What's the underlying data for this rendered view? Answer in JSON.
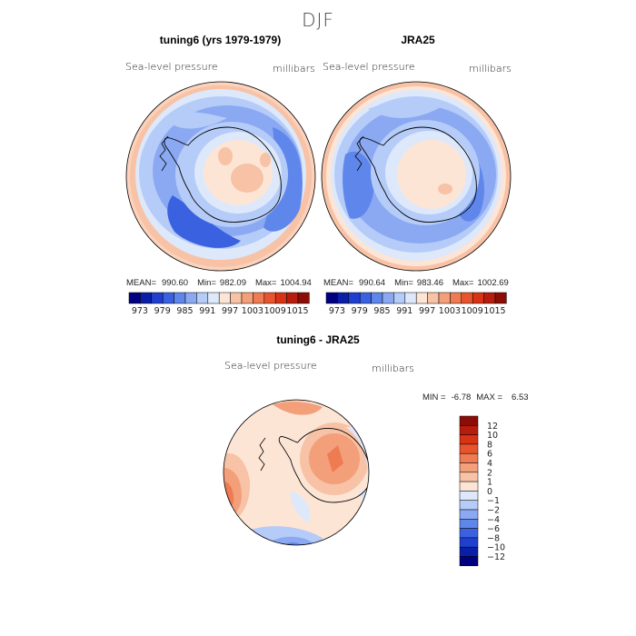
{
  "header": {
    "title": "DJF"
  },
  "panels": [
    {
      "title": "tuning6 (yrs 1979-1979)",
      "variable": "Sea-level pressure",
      "units": "millibars",
      "stats": {
        "mean_label": "MEAN=",
        "mean": "990.60",
        "min_label": "Min=",
        "min": "982.09",
        "max_label": "Max=",
        "max": "1004.94"
      }
    },
    {
      "title": "JRA25",
      "variable": "Sea-level pressure",
      "units": "millibars",
      "stats": {
        "mean_label": "MEAN=",
        "mean": "990.64",
        "min_label": "Min=",
        "min": "983.46",
        "max_label": "Max=",
        "max": "1002.69"
      }
    },
    {
      "title": "tuning6 - JRA25",
      "variable": "Sea-level pressure",
      "units": "millibars",
      "stats": {
        "min_label": "MIN =",
        "min": "-6.78",
        "max_label": "MAX =",
        "max": "6.53"
      }
    }
  ],
  "colorbar_abs": {
    "colors": [
      "#000080",
      "#0a1fa8",
      "#1f3fcf",
      "#3a62e0",
      "#5f86ea",
      "#8aa9f2",
      "#b5cbf8",
      "#dde8fb",
      "#fde5d6",
      "#f7c2a5",
      "#f39f7a",
      "#ee7b52",
      "#e7542d",
      "#d93316",
      "#b81c0c",
      "#8c0c06"
    ],
    "labels": [
      "973",
      "979",
      "985",
      "991",
      "997",
      "1003",
      "1009",
      "1015"
    ]
  },
  "colorbar_diff": {
    "colors": [
      "#000080",
      "#0a1fa8",
      "#1f3fcf",
      "#3a62e0",
      "#5f86ea",
      "#8aa9f2",
      "#b5cbf8",
      "#dde8fb",
      "#fde5d6",
      "#f7c2a5",
      "#f39f7a",
      "#ee7b52",
      "#e7542d",
      "#d93316",
      "#b81c0c",
      "#8c0c06"
    ],
    "labels": [
      "12",
      "10",
      "8",
      "6",
      "4",
      "2",
      "1",
      "0",
      "−1",
      "−2",
      "−4",
      "−6",
      "−8",
      "−10",
      "−12"
    ]
  }
}
